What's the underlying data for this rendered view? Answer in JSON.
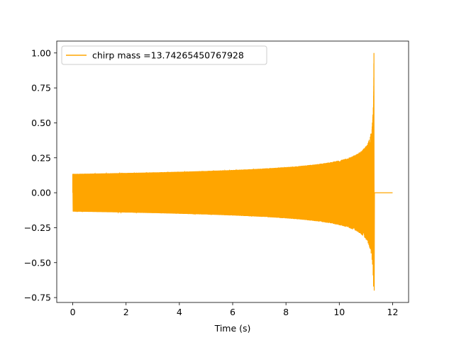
{
  "chart_data": {
    "type": "line",
    "title": "",
    "xlabel": "Time (s)",
    "ylabel": "",
    "xlim": [
      -0.6,
      12.6
    ],
    "ylim": [
      -0.785,
      1.085
    ],
    "x_ticks": [
      0,
      2,
      4,
      6,
      8,
      10,
      12
    ],
    "x_tick_labels": [
      "0",
      "2",
      "4",
      "6",
      "8",
      "10",
      "12"
    ],
    "y_ticks": [
      -0.75,
      -0.5,
      -0.25,
      0.0,
      0.25,
      0.5,
      0.75,
      1.0
    ],
    "y_tick_labels": [
      "−0.75",
      "−0.50",
      "−0.25",
      "0.00",
      "0.25",
      "0.50",
      "0.75",
      "1.00"
    ],
    "grid": false,
    "legend_position": "top-left",
    "series": [
      {
        "name": "chirp mass =13.74265450767928",
        "color": "#ffa500",
        "waveform": "chirp",
        "t_start": 0.0,
        "t_merger": 11.3,
        "t_end": 12.0,
        "start_amplitude": 0.135,
        "peak_max": 1.0,
        "peak_min": -0.7,
        "post_merger_value": 0.0
      }
    ]
  }
}
